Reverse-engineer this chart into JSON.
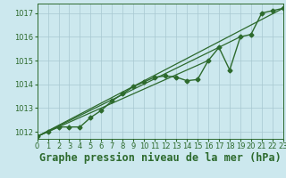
{
  "title": "Graphe pression niveau de la mer (hPa)",
  "bg_color": "#cce8ee",
  "line_color": "#2d6a2d",
  "xlim": [
    0,
    23
  ],
  "ylim": [
    1011.7,
    1017.4
  ],
  "yticks": [
    1012,
    1013,
    1014,
    1015,
    1016,
    1017
  ],
  "xticks": [
    0,
    1,
    2,
    3,
    4,
    5,
    6,
    7,
    8,
    9,
    10,
    11,
    12,
    13,
    14,
    15,
    16,
    17,
    18,
    19,
    20,
    21,
    22,
    23
  ],
  "data_y": [
    1011.8,
    1012.0,
    1012.2,
    1012.2,
    1012.2,
    1012.6,
    1012.9,
    1013.3,
    1013.6,
    1013.9,
    1014.1,
    1014.3,
    1014.35,
    1014.3,
    1014.15,
    1014.2,
    1015.0,
    1015.55,
    1014.6,
    1016.0,
    1016.1,
    1017.0,
    1017.1,
    1017.2
  ],
  "straight_lines": [
    [
      0,
      23
    ],
    [
      0,
      19
    ],
    [
      0,
      16
    ]
  ],
  "marker": "D",
  "markersize": 2.5,
  "linewidth": 1.0,
  "title_fontsize": 8.5,
  "tick_fontsize": 6.0,
  "fig_width": 3.2,
  "fig_height": 2.0,
  "dpi": 100
}
